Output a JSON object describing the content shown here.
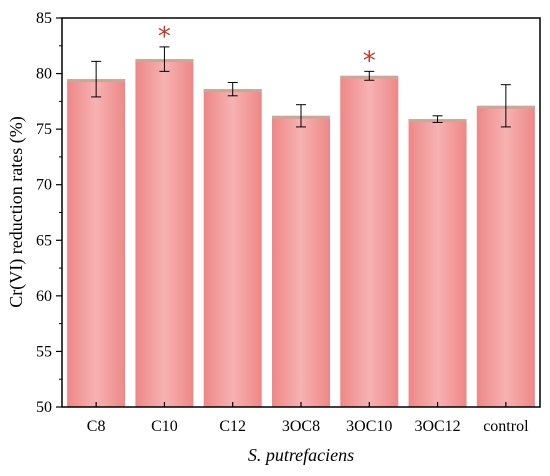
{
  "chart_data": {
    "type": "bar",
    "xlabel": "S. putrefaciens",
    "ylabel": "Cr(VI) reduction rates (%)",
    "ylim": [
      50,
      85
    ],
    "yticks": [
      50,
      55,
      60,
      65,
      70,
      75,
      80,
      85
    ],
    "categories": [
      "C8",
      "C10",
      "C12",
      "3OC8",
      "3OC10",
      "3OC12",
      "control"
    ],
    "values": [
      79.5,
      81.3,
      78.6,
      76.2,
      79.8,
      75.9,
      77.1
    ],
    "error": [
      1.6,
      1.1,
      0.6,
      1.0,
      0.4,
      0.3,
      1.9
    ],
    "significance_marker": "*",
    "significant_categories": [
      "C10",
      "3OC10"
    ],
    "bar_color": "#f4a3a3",
    "marker_color": "#c0392b",
    "grid": false
  }
}
